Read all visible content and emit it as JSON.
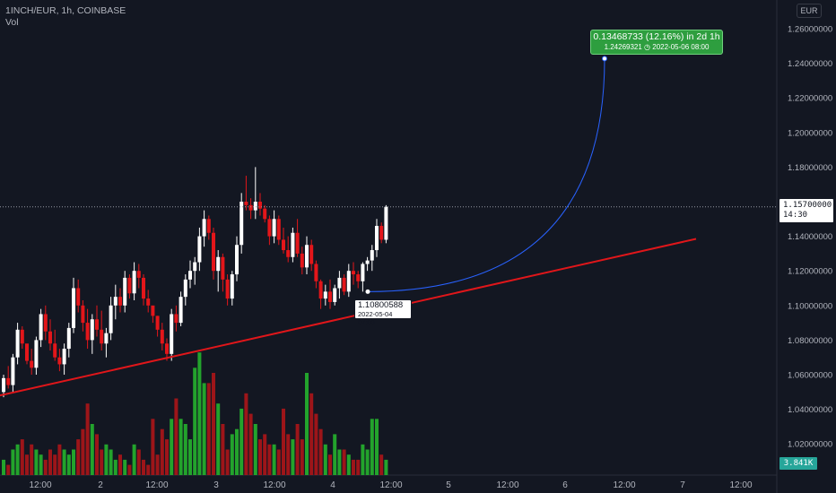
{
  "header": {
    "symbol": "1INCH/EUR, 1h, COINBASE",
    "volume_label": "Vol"
  },
  "currency_button": "EUR",
  "price_axis_labels": [
    "1.26000000",
    "1.24000000",
    "1.22000000",
    "1.20000000",
    "1.18000000",
    "1.16000000",
    "1.14000000",
    "1.12000000",
    "1.10000000",
    "1.08000000",
    "1.06000000",
    "1.04000000",
    "1.02000000"
  ],
  "last_price": {
    "value": "1.15700000",
    "countdown": "14:30",
    "color": "#ffffff"
  },
  "volume_tag": {
    "value": "3.841K",
    "color": "#26a69a"
  },
  "projection": {
    "change_text": "0.13468733 (12.16%) in 2d 1h",
    "target_text": "1.24269321 ◷ 2022-05-06 08:00",
    "start_price": 1.108,
    "target_price": 1.24269321,
    "color": "#2e9e3f"
  },
  "low_label": {
    "price": "1.10800588",
    "date": "2022-05-04 07:00"
  },
  "colors": {
    "up": "#ffffff",
    "down": "#e4161a",
    "vol_up": "#23a32c",
    "vol_down": "#9d1519",
    "trendline": "#e0161a",
    "arc": "#2962ff"
  },
  "chart_data": {
    "type": "candlestick",
    "ylim": [
      1.01,
      1.27
    ],
    "trendline": {
      "from_price": 1.048,
      "to_price": 1.1385
    },
    "x_labels": [
      "12:00",
      "2",
      "12:00",
      "3",
      "12:00",
      "4",
      "12:00",
      "5",
      "12:00",
      "6",
      "12:00",
      "7",
      "12:00"
    ],
    "candles": [
      [
        1.05,
        1.06,
        1.047,
        1.058,
        3
      ],
      [
        1.058,
        1.065,
        1.052,
        1.054,
        2
      ],
      [
        1.054,
        1.072,
        1.05,
        1.07,
        5
      ],
      [
        1.07,
        1.09,
        1.066,
        1.086,
        6
      ],
      [
        1.086,
        1.088,
        1.075,
        1.078,
        7
      ],
      [
        1.078,
        1.076,
        1.066,
        1.068,
        4
      ],
      [
        1.068,
        1.075,
        1.06,
        1.064,
        6
      ],
      [
        1.064,
        1.082,
        1.06,
        1.08,
        5
      ],
      [
        1.08,
        1.098,
        1.076,
        1.095,
        4
      ],
      [
        1.095,
        1.1,
        1.08,
        1.085,
        3
      ],
      [
        1.085,
        1.092,
        1.074,
        1.078,
        5
      ],
      [
        1.078,
        1.086,
        1.068,
        1.07,
        4
      ],
      [
        1.07,
        1.075,
        1.062,
        1.066,
        6
      ],
      [
        1.066,
        1.078,
        1.06,
        1.075,
        5
      ],
      [
        1.075,
        1.09,
        1.07,
        1.087,
        4
      ],
      [
        1.087,
        1.116,
        1.084,
        1.11,
        5
      ],
      [
        1.11,
        1.115,
        1.096,
        1.1,
        7
      ],
      [
        1.1,
        1.103,
        1.085,
        1.09,
        9
      ],
      [
        1.09,
        1.098,
        1.075,
        1.08,
        14
      ],
      [
        1.08,
        1.095,
        1.072,
        1.092,
        10
      ],
      [
        1.092,
        1.1,
        1.082,
        1.086,
        8
      ],
      [
        1.086,
        1.097,
        1.074,
        1.078,
        5
      ],
      [
        1.078,
        1.087,
        1.07,
        1.084,
        6
      ],
      [
        1.084,
        1.105,
        1.08,
        1.1,
        5
      ],
      [
        1.1,
        1.112,
        1.092,
        1.105,
        3
      ],
      [
        1.105,
        1.11,
        1.096,
        1.1,
        4
      ],
      [
        1.1,
        1.12,
        1.096,
        1.116,
        3
      ],
      [
        1.116,
        1.118,
        1.104,
        1.107,
        2
      ],
      [
        1.107,
        1.125,
        1.103,
        1.12,
        6
      ],
      [
        1.12,
        1.124,
        1.11,
        1.116,
        5
      ],
      [
        1.116,
        1.118,
        1.1,
        1.104,
        3
      ],
      [
        1.104,
        1.109,
        1.096,
        1.1,
        2
      ],
      [
        1.1,
        1.098,
        1.09,
        1.094,
        11
      ],
      [
        1.094,
        1.094,
        1.082,
        1.086,
        4
      ],
      [
        1.086,
        1.09,
        1.074,
        1.078,
        9
      ],
      [
        1.078,
        1.081,
        1.068,
        1.072,
        7
      ],
      [
        1.072,
        1.098,
        1.068,
        1.095,
        11
      ],
      [
        1.095,
        1.1,
        1.085,
        1.09,
        15
      ],
      [
        1.09,
        1.108,
        1.088,
        1.105,
        11
      ],
      [
        1.105,
        1.118,
        1.1,
        1.115,
        10
      ],
      [
        1.115,
        1.126,
        1.11,
        1.12,
        7
      ],
      [
        1.12,
        1.128,
        1.112,
        1.125,
        21
      ],
      [
        1.125,
        1.145,
        1.12,
        1.14,
        24
      ],
      [
        1.14,
        1.155,
        1.134,
        1.15,
        18
      ],
      [
        1.15,
        1.152,
        1.138,
        1.142,
        18
      ],
      [
        1.142,
        1.145,
        1.115,
        1.12,
        20
      ],
      [
        1.12,
        1.132,
        1.108,
        1.128,
        14
      ],
      [
        1.128,
        1.13,
        1.108,
        1.115,
        10
      ],
      [
        1.115,
        1.118,
        1.1,
        1.104,
        5
      ],
      [
        1.104,
        1.12,
        1.1,
        1.118,
        8
      ],
      [
        1.118,
        1.14,
        1.114,
        1.135,
        9
      ],
      [
        1.135,
        1.165,
        1.13,
        1.16,
        13
      ],
      [
        1.16,
        1.175,
        1.155,
        1.158,
        16
      ],
      [
        1.158,
        1.162,
        1.15,
        1.155,
        12
      ],
      [
        1.155,
        1.18,
        1.15,
        1.16,
        10
      ],
      [
        1.16,
        1.165,
        1.152,
        1.156,
        7
      ],
      [
        1.156,
        1.158,
        1.148,
        1.15,
        8
      ],
      [
        1.15,
        1.152,
        1.135,
        1.14,
        6
      ],
      [
        1.14,
        1.155,
        1.136,
        1.15,
        6
      ],
      [
        1.15,
        1.152,
        1.135,
        1.138,
        5
      ],
      [
        1.138,
        1.145,
        1.13,
        1.132,
        13
      ],
      [
        1.132,
        1.14,
        1.125,
        1.128,
        8
      ],
      [
        1.128,
        1.145,
        1.125,
        1.142,
        7
      ],
      [
        1.142,
        1.15,
        1.128,
        1.13,
        10
      ],
      [
        1.13,
        1.134,
        1.118,
        1.122,
        7
      ],
      [
        1.122,
        1.14,
        1.118,
        1.135,
        20
      ],
      [
        1.135,
        1.138,
        1.12,
        1.124,
        16
      ],
      [
        1.124,
        1.126,
        1.11,
        1.114,
        12
      ],
      [
        1.114,
        1.115,
        1.098,
        1.104,
        9
      ],
      [
        1.104,
        1.112,
        1.1,
        1.108,
        6
      ],
      [
        1.108,
        1.115,
        1.098,
        1.102,
        4
      ],
      [
        1.102,
        1.112,
        1.1,
        1.11,
        8
      ],
      [
        1.11,
        1.12,
        1.104,
        1.116,
        5
      ],
      [
        1.116,
        1.118,
        1.106,
        1.108,
        5
      ],
      [
        1.108,
        1.124,
        1.105,
        1.12,
        4
      ],
      [
        1.12,
        1.125,
        1.112,
        1.118,
        3
      ],
      [
        1.118,
        1.12,
        1.11,
        1.114,
        3
      ],
      [
        1.114,
        1.125,
        1.108,
        1.124,
        6
      ],
      [
        1.124,
        1.128,
        1.12,
        1.126,
        5
      ],
      [
        1.126,
        1.135,
        1.12,
        1.132,
        11
      ],
      [
        1.132,
        1.15,
        1.128,
        1.146,
        11
      ],
      [
        1.146,
        1.148,
        1.136,
        1.138,
        4
      ],
      [
        1.138,
        1.158,
        1.136,
        1.157,
        3
      ]
    ]
  }
}
